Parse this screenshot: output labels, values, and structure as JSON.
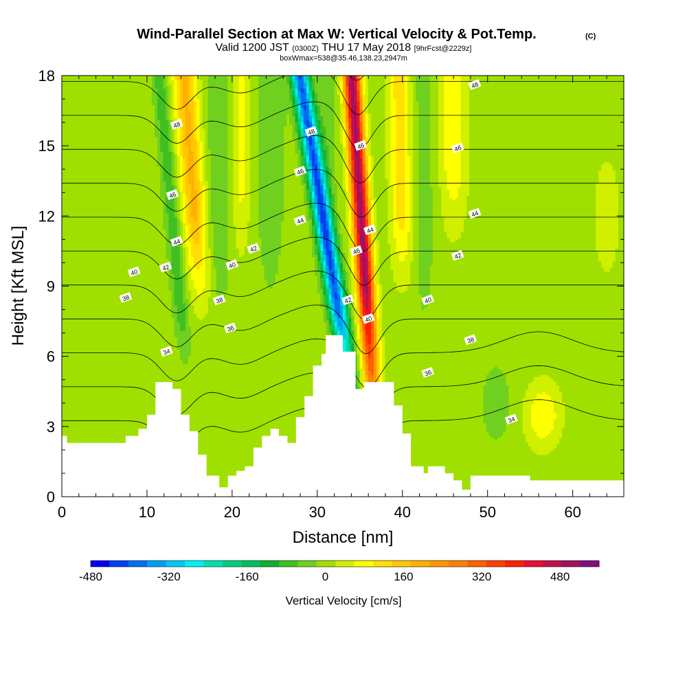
{
  "title": {
    "main": "Wind-Parallel Section at Max W: Vertical Velocity & Pot.Temp.",
    "copyright": "(C)",
    "valid_prefix": "Valid 1200 JST",
    "valid_utc": "(0300Z)",
    "valid_date": "THU 17 May 2018",
    "forecast": "[9hrFcst@2229z]",
    "box": "boxWmax=538@35.46,138.23,2947m"
  },
  "chart_data": {
    "type": "heatmap",
    "xlabel": "Distance [nm]",
    "ylabel": "Height [Kft MSL]",
    "xlim": [
      0,
      66
    ],
    "ylim": [
      0,
      18
    ],
    "x_ticks": [
      0,
      10,
      20,
      30,
      40,
      50,
      60
    ],
    "y_ticks": [
      0,
      3,
      6,
      9,
      12,
      15,
      18
    ],
    "colorbar": {
      "label": "Vertical Velocity [cm/s]",
      "min": -480,
      "max": 560,
      "step": 40,
      "ticks": [
        -480,
        -320,
        -160,
        0,
        160,
        320,
        480
      ],
      "colors": [
        "#0000f0",
        "#0040f0",
        "#0070f0",
        "#00a0f0",
        "#00c8f0",
        "#00f0f0",
        "#00e0b0",
        "#00d080",
        "#00c060",
        "#10b030",
        "#40c020",
        "#70d020",
        "#a0e000",
        "#d0f000",
        "#ffff00",
        "#ffe000",
        "#ffc800",
        "#ffb000",
        "#ff9800",
        "#ff8000",
        "#ff6000",
        "#ff4000",
        "#ff2000",
        "#e81030",
        "#c01050",
        "#a01060",
        "#801080"
      ]
    },
    "terrain_kft": [
      [
        0,
        2.6
      ],
      [
        0.6,
        2.6
      ],
      [
        0.6,
        2.3
      ],
      [
        7.5,
        2.3
      ],
      [
        7.5,
        2.6
      ],
      [
        9,
        2.6
      ],
      [
        9,
        2.9
      ],
      [
        10,
        2.9
      ],
      [
        10,
        3.5
      ],
      [
        11,
        3.5
      ],
      [
        11,
        4.9
      ],
      [
        13,
        4.9
      ],
      [
        13,
        4.6
      ],
      [
        14,
        4.6
      ],
      [
        14,
        3.5
      ],
      [
        15,
        3.5
      ],
      [
        15,
        2.8
      ],
      [
        16,
        2.8
      ],
      [
        16,
        1.8
      ],
      [
        17,
        1.8
      ],
      [
        17,
        0.9
      ],
      [
        18.5,
        0.9
      ],
      [
        18.5,
        0.4
      ],
      [
        19.5,
        0.4
      ],
      [
        19.5,
        0.9
      ],
      [
        20.5,
        0.9
      ],
      [
        20.5,
        1.1
      ],
      [
        21.5,
        1.1
      ],
      [
        21.5,
        1.3
      ],
      [
        22.5,
        1.3
      ],
      [
        22.5,
        2.1
      ],
      [
        23.5,
        2.1
      ],
      [
        23.5,
        2.6
      ],
      [
        24.5,
        2.6
      ],
      [
        24.5,
        2.9
      ],
      [
        25.5,
        2.9
      ],
      [
        25.5,
        2.6
      ],
      [
        26.5,
        2.6
      ],
      [
        26.5,
        2.3
      ],
      [
        27.5,
        2.3
      ],
      [
        27.5,
        3.4
      ],
      [
        28.5,
        3.4
      ],
      [
        28.5,
        4.3
      ],
      [
        29.5,
        4.3
      ],
      [
        29.5,
        5.6
      ],
      [
        30.5,
        5.6
      ],
      [
        30.5,
        6.1
      ],
      [
        31,
        6.1
      ],
      [
        31,
        6.9
      ],
      [
        33,
        6.9
      ],
      [
        33,
        6.2
      ],
      [
        34.5,
        6.2
      ],
      [
        34.5,
        4.6
      ],
      [
        35.5,
        4.6
      ],
      [
        35.5,
        4.9
      ],
      [
        39,
        4.9
      ],
      [
        39,
        3.9
      ],
      [
        40,
        3.9
      ],
      [
        40,
        2.7
      ],
      [
        41,
        2.7
      ],
      [
        41,
        1.3
      ],
      [
        42.5,
        1.3
      ],
      [
        42.5,
        1.0
      ],
      [
        43,
        1.0
      ],
      [
        43,
        1.3
      ],
      [
        45,
        1.3
      ],
      [
        45,
        1.0
      ],
      [
        46,
        1.0
      ],
      [
        46,
        0.7
      ],
      [
        47,
        0.7
      ],
      [
        47,
        0.3
      ],
      [
        48,
        0.3
      ],
      [
        48,
        0.9
      ],
      [
        55,
        0.9
      ],
      [
        55,
        0.7
      ],
      [
        66,
        0.7
      ]
    ],
    "theta_contours": [
      34,
      36,
      38,
      40,
      42,
      44,
      46,
      48
    ],
    "theta_labels": [
      {
        "v": "48",
        "x": 13.5,
        "y": 15.9
      },
      {
        "v": "46",
        "x": 13.0,
        "y": 12.9
      },
      {
        "v": "44",
        "x": 13.5,
        "y": 10.9
      },
      {
        "v": "42",
        "x": 12.2,
        "y": 9.8
      },
      {
        "v": "40",
        "x": 8.5,
        "y": 9.6
      },
      {
        "v": "38",
        "x": 7.5,
        "y": 8.5
      },
      {
        "v": "34",
        "x": 12.3,
        "y": 6.2
      },
      {
        "v": "40",
        "x": 20,
        "y": 9.9
      },
      {
        "v": "38",
        "x": 18.5,
        "y": 8.4
      },
      {
        "v": "36",
        "x": 19.8,
        "y": 7.2
      },
      {
        "v": "42",
        "x": 22.5,
        "y": 10.6
      },
      {
        "v": "44",
        "x": 28,
        "y": 11.8
      },
      {
        "v": "46",
        "x": 28,
        "y": 13.9
      },
      {
        "v": "48",
        "x": 29.3,
        "y": 15.6
      },
      {
        "v": "46",
        "x": 35.1,
        "y": 15.0
      },
      {
        "v": "44",
        "x": 36.2,
        "y": 11.4
      },
      {
        "v": "46",
        "x": 34.6,
        "y": 10.5
      },
      {
        "v": "42",
        "x": 33.6,
        "y": 8.4
      },
      {
        "v": "40",
        "x": 36,
        "y": 7.6
      },
      {
        "v": "48",
        "x": 48.5,
        "y": 17.6
      },
      {
        "v": "46",
        "x": 46.5,
        "y": 14.9
      },
      {
        "v": "44",
        "x": 48.5,
        "y": 12.1
      },
      {
        "v": "42",
        "x": 46.5,
        "y": 10.3
      },
      {
        "v": "40",
        "x": 43,
        "y": 8.4
      },
      {
        "v": "38",
        "x": 48,
        "y": 6.7
      },
      {
        "v": "36",
        "x": 43,
        "y": 5.3
      },
      {
        "v": "34",
        "x": 52.8,
        "y": 3.3
      }
    ]
  }
}
